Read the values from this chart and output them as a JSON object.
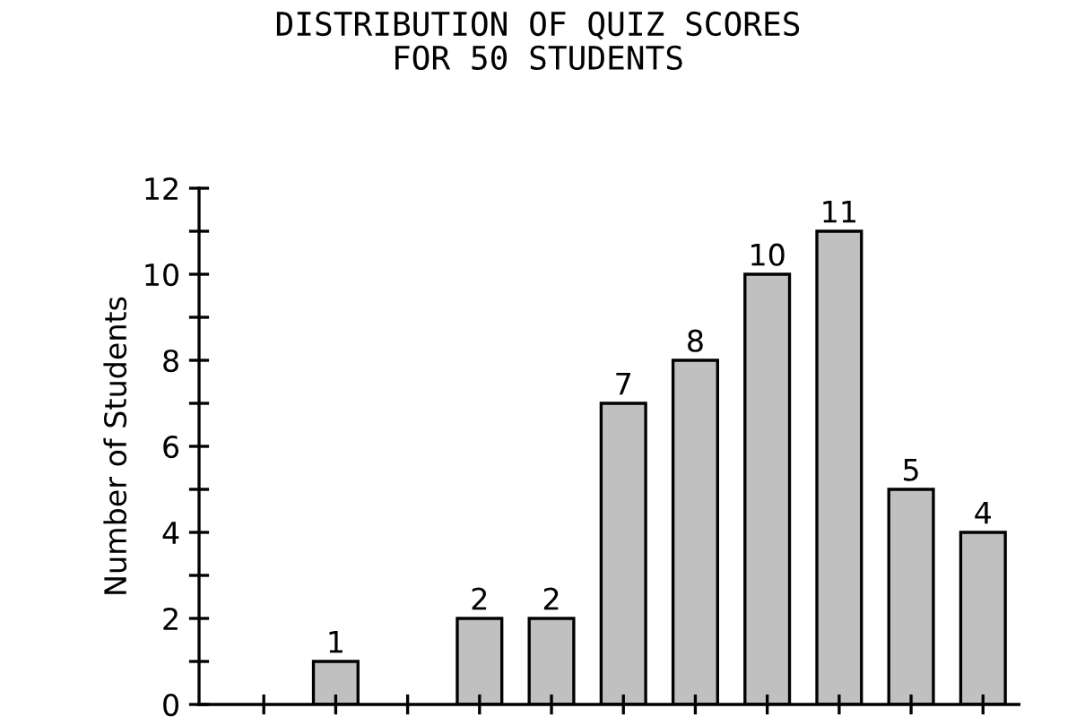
{
  "chart_data": {
    "type": "bar",
    "title": "DISTRIBUTION OF QUIZ SCORES\nFOR 50 STUDENTS",
    "ylabel": "Number of Students",
    "categories": [
      null,
      null,
      null,
      null,
      null,
      null,
      null,
      null,
      null,
      null,
      null
    ],
    "values": [
      0,
      1,
      0,
      2,
      2,
      7,
      8,
      10,
      11,
      5,
      4
    ],
    "value_labels": [
      null,
      "1",
      null,
      "2",
      "2",
      "7",
      "8",
      "10",
      "11",
      "5",
      "4"
    ],
    "color": "#c0c0c0",
    "ylim": [
      0,
      12
    ],
    "yticks": [
      0,
      {
        "value": 1,
        "label": null
      },
      2,
      {
        "value": 3,
        "label": null
      },
      4,
      {
        "value": 5,
        "label": null
      },
      6,
      {
        "value": 7,
        "label": null
      },
      8,
      {
        "value": 9,
        "label": null
      },
      10,
      {
        "value": 11,
        "label": null
      },
      12
    ],
    "grid": false,
    "legend": false
  }
}
